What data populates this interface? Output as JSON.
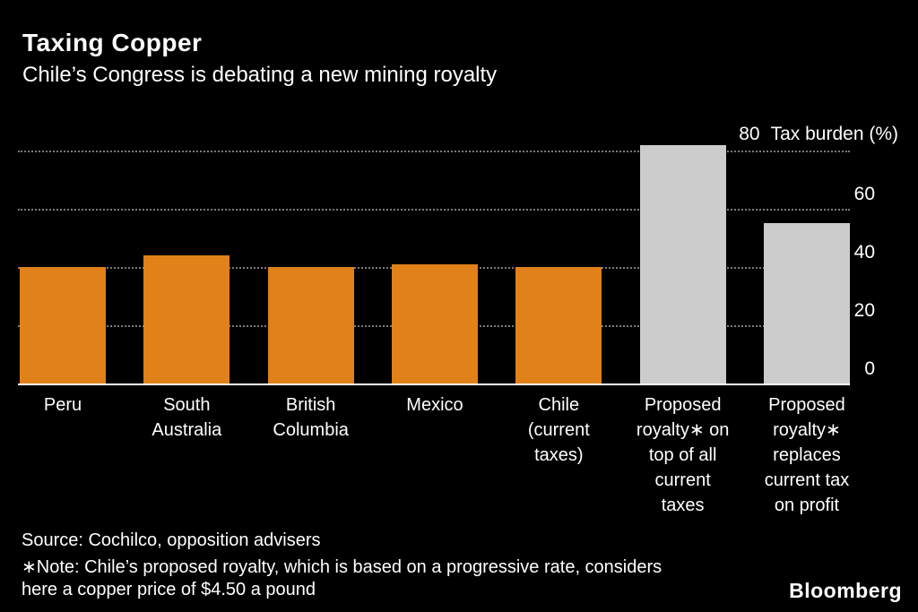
{
  "header": {
    "title": "Taxing Copper",
    "subtitle": "Chile’s Congress is debating a new mining royalty"
  },
  "chart_data": {
    "type": "bar",
    "categories": [
      "Peru",
      "South Australia",
      "British Columbia",
      "Mexico",
      "Chile (current taxes)",
      "Proposed royalty∗ on top of all current taxes",
      "Proposed royalty∗ replaces current tax on profit"
    ],
    "category_lines": [
      [
        "Peru"
      ],
      [
        "South",
        "Australia"
      ],
      [
        "British",
        "Columbia"
      ],
      [
        "Mexico"
      ],
      [
        "Chile",
        "(current",
        "taxes)"
      ],
      [
        "Proposed",
        "royalty∗ on",
        "top of all",
        "current",
        "taxes"
      ],
      [
        "Proposed",
        "royalty∗",
        "replaces",
        "current tax",
        "on profit"
      ]
    ],
    "values": [
      40,
      44,
      40,
      41,
      40,
      82,
      55
    ],
    "bar_colors": [
      "#E08119",
      "#E08119",
      "#E08119",
      "#E08119",
      "#E08119",
      "#CCCCCC",
      "#CCCCCC"
    ],
    "title": "Taxing Copper",
    "xlabel": "",
    "ylabel": "Tax burden (%)",
    "yticks": [
      0,
      20,
      40,
      60,
      80
    ],
    "ylim": [
      0,
      85
    ],
    "grid": "horizontal-dotted",
    "legend": "none",
    "colors": {
      "background": "#000000",
      "text": "#FFFFFF",
      "orange_bar": "#E08119",
      "gray_bar": "#CCCCCC",
      "gridline": "#7A7A7A"
    }
  },
  "footer": {
    "source": "Source: Cochilco, opposition advisers",
    "note_line1": "∗Note: Chile’s proposed royalty, which is based on a progressive rate, considers",
    "note_line2": "here a copper price of $4.50 a pound",
    "brand": "Bloomberg"
  }
}
